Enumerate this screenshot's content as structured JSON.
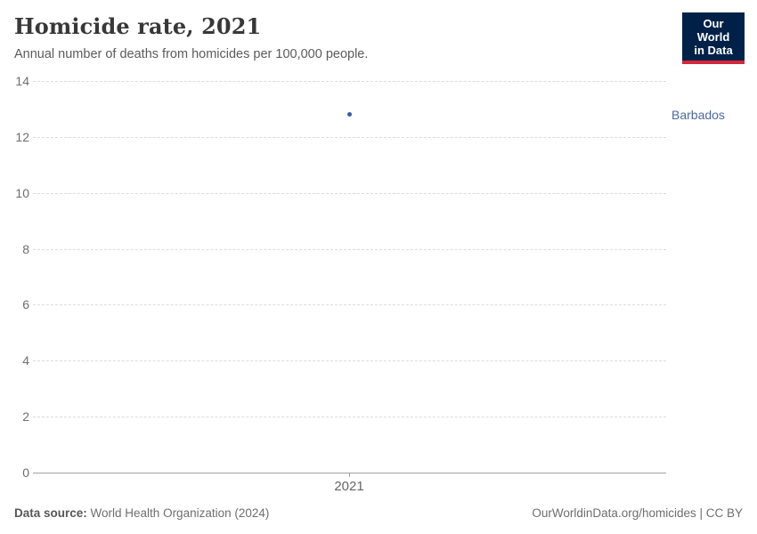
{
  "header": {
    "title": "Homicide rate, 2021",
    "subtitle": "Annual number of deaths from homicides per 100,000 people.",
    "logo": {
      "line1": "Our World",
      "line2": "in Data",
      "bg_color": "#002147",
      "accent_color": "#d3273c"
    }
  },
  "chart_data": {
    "type": "scatter",
    "title": "Homicide rate, 2021",
    "subtitle": "Annual number of deaths from homicides per 100,000 people.",
    "x": [
      2021
    ],
    "x_tick_labels": [
      "2021"
    ],
    "series": [
      {
        "name": "Barbados",
        "values": [
          12.8
        ],
        "point_color": "#3b5d9e",
        "label_color": "#4c6a9c"
      }
    ],
    "xlabel": "",
    "ylabel": "",
    "ylim": [
      0,
      14
    ],
    "y_ticks": [
      0,
      2,
      4,
      6,
      8,
      10,
      12,
      14
    ],
    "grid": "horizontal-dashed",
    "legend_position": "right-of-point",
    "colors": {
      "gridline": "#dcdcdc",
      "axis_line": "#a3a3a3",
      "tick_label": "#6e6e6e"
    }
  },
  "footer": {
    "source_label": "Data source:",
    "source_text": " World Health Organization (2024)",
    "credit": "OurWorldinData.org/homicides | CC BY"
  }
}
